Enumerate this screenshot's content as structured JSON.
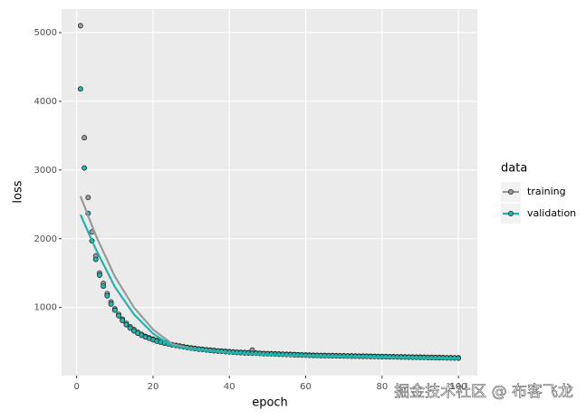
{
  "chart_data": {
    "type": "scatter",
    "x_label": "epoch",
    "y_label": "loss",
    "legend_title": "data",
    "watermark": "掘金技术社区 @ 布客飞龙",
    "xlim": [
      -3.95,
      104.95
    ],
    "xticks": [
      0,
      20,
      40,
      60,
      80,
      100
    ],
    "ylim": [
      8,
      5342
    ],
    "yticks": [
      1000,
      2000,
      3000,
      4000,
      5000
    ],
    "grid": true,
    "legend_position": "right",
    "x": [
      1,
      2,
      3,
      4,
      5,
      6,
      7,
      8,
      9,
      10,
      11,
      12,
      13,
      14,
      15,
      16,
      17,
      18,
      19,
      20,
      21,
      22,
      23,
      24,
      25,
      26,
      27,
      28,
      29,
      30,
      31,
      32,
      33,
      34,
      35,
      36,
      37,
      38,
      39,
      40,
      41,
      42,
      43,
      44,
      45,
      46,
      47,
      48,
      49,
      50,
      51,
      52,
      53,
      54,
      55,
      56,
      57,
      58,
      59,
      60,
      61,
      62,
      63,
      64,
      65,
      66,
      67,
      68,
      69,
      70,
      71,
      72,
      73,
      74,
      75,
      76,
      77,
      78,
      79,
      80,
      81,
      82,
      83,
      84,
      85,
      86,
      87,
      88,
      89,
      90,
      91,
      92,
      93,
      94,
      95,
      96,
      97,
      98,
      99,
      100
    ],
    "series": [
      {
        "name": "training",
        "color": "#999999",
        "values": [
          5100,
          3470,
          2600,
          2100,
          1750,
          1500,
          1350,
          1200,
          1080,
          980,
          900,
          830,
          770,
          720,
          680,
          640,
          610,
          580,
          560,
          540,
          520,
          500,
          490,
          475,
          460,
          450,
          440,
          430,
          420,
          412,
          405,
          398,
          392,
          386,
          380,
          375,
          370,
          366,
          362,
          358,
          354,
          350,
          347,
          344,
          341,
          380,
          338,
          335,
          332,
          330,
          328,
          326,
          324,
          322,
          320,
          318,
          316,
          314,
          312,
          310,
          308,
          306,
          305,
          304,
          303,
          302,
          301,
          300,
          299,
          298,
          297,
          296,
          295,
          294,
          293,
          292,
          291,
          290,
          289,
          288,
          287,
          286,
          285,
          284,
          283,
          282,
          281,
          280,
          279,
          278,
          277,
          276,
          275,
          274,
          273,
          272,
          271,
          270,
          269,
          268
        ],
        "smooth": {
          "x": [
            1,
            5,
            10,
            15,
            20,
            25,
            30,
            40,
            50,
            60,
            70,
            80,
            90,
            100
          ],
          "values": [
            2620,
            2050,
            1450,
            1000,
            680,
            470,
            400,
            340,
            310,
            295,
            285,
            275,
            265,
            255
          ]
        }
      },
      {
        "name": "validation",
        "color": "#1fb5ad",
        "values": [
          4180,
          3030,
          2370,
          1970,
          1700,
          1470,
          1310,
          1170,
          1050,
          960,
          880,
          810,
          750,
          700,
          660,
          625,
          595,
          570,
          550,
          530,
          510,
          495,
          480,
          468,
          455,
          445,
          435,
          425,
          415,
          407,
          400,
          393,
          387,
          381,
          375,
          370,
          365,
          361,
          357,
          353,
          349,
          345,
          342,
          339,
          336,
          333,
          333,
          330,
          327,
          325,
          323,
          321,
          319,
          317,
          315,
          313,
          311,
          309,
          307,
          305,
          303,
          301,
          300,
          299,
          298,
          297,
          296,
          295,
          294,
          293,
          292,
          291,
          290,
          289,
          288,
          287,
          286,
          285,
          284,
          283,
          282,
          281,
          280,
          279,
          278,
          277,
          276,
          275,
          274,
          273,
          272,
          271,
          270,
          269,
          268,
          267,
          266,
          265,
          264,
          263
        ],
        "smooth": {
          "x": [
            1,
            5,
            10,
            15,
            20,
            25,
            30,
            40,
            50,
            60,
            70,
            80,
            90,
            100
          ],
          "values": [
            2350,
            1850,
            1300,
            900,
            620,
            440,
            390,
            340,
            310,
            295,
            285,
            275,
            265,
            255
          ]
        }
      }
    ]
  }
}
